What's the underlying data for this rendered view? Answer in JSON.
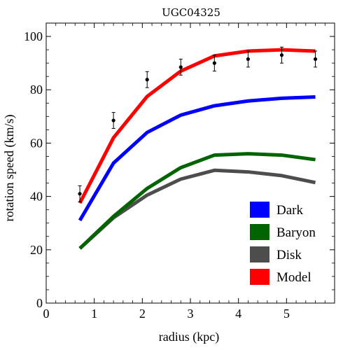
{
  "chart_data": {
    "type": "line",
    "title": "UGC04325",
    "xlabel": "radius (kpc)",
    "ylabel": "rotation speed (km/s)",
    "xlim": [
      0,
      6.0
    ],
    "ylim": [
      0,
      105
    ],
    "x_ticks": [
      0,
      1,
      2,
      3,
      4,
      5
    ],
    "y_ticks": [
      0,
      20,
      40,
      60,
      80,
      100
    ],
    "grid": false,
    "legend_position": "bottom-right",
    "x": [
      0.7,
      1.4,
      2.1,
      2.8,
      3.5,
      4.2,
      4.9,
      5.6
    ],
    "series": [
      {
        "name": "Dark",
        "color": "#0000ff",
        "values": [
          31,
          52.5,
          64,
          70.5,
          74,
          75.8,
          76.8,
          77.3
        ]
      },
      {
        "name": "Baryon",
        "color": "#006400",
        "values": [
          20.5,
          32.5,
          43,
          50.8,
          55.5,
          56,
          55.5,
          53.8
        ]
      },
      {
        "name": "Disk",
        "color": "#4d4d4d",
        "values": [
          20.5,
          32,
          40.5,
          46.5,
          49.8,
          49.2,
          47.8,
          45.2
        ]
      },
      {
        "name": "Model",
        "color": "#ff0000",
        "values": [
          37.5,
          62,
          77.5,
          87,
          92.7,
          94.5,
          95,
          94.5
        ]
      }
    ],
    "observed": {
      "color": "#000000",
      "x": [
        0.7,
        1.4,
        2.1,
        2.8,
        3.5,
        4.2,
        4.9,
        5.6
      ],
      "y": [
        41,
        68.5,
        83.8,
        88.5,
        90,
        91.5,
        93,
        91.5
      ],
      "err": [
        3,
        3,
        3,
        3,
        3,
        3,
        3,
        3
      ]
    }
  }
}
